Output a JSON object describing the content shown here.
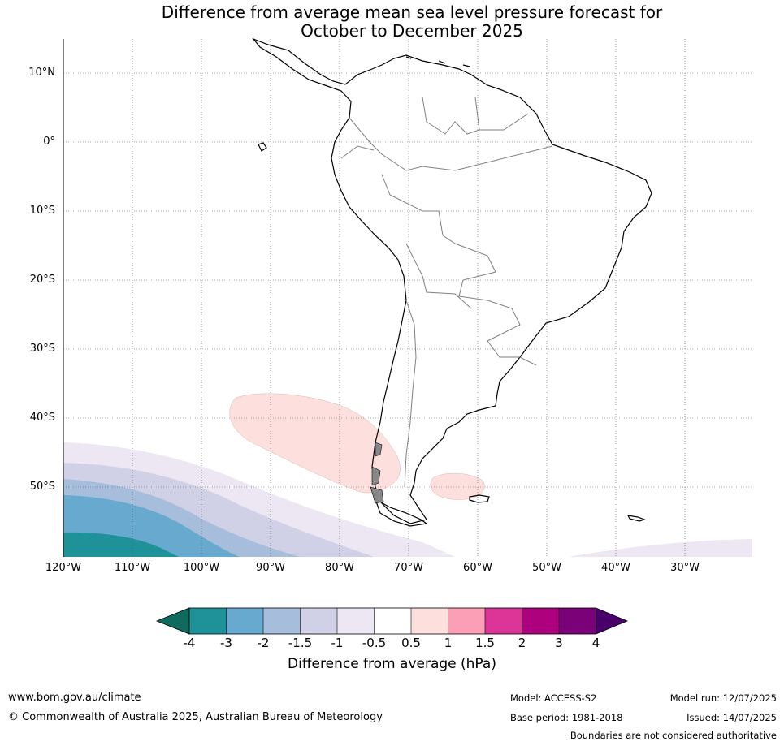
{
  "title_line1": "Difference from average mean sea level pressure forecast for",
  "title_line2": "October to December 2025",
  "lat_labels": [
    "10°N",
    "0°",
    "10°S",
    "20°S",
    "30°S",
    "40°S",
    "50°S"
  ],
  "lon_labels": [
    "120°W",
    "110°W",
    "100°W",
    "90°W",
    "80°W",
    "70°W",
    "60°W",
    "50°W",
    "40°W",
    "30°W"
  ],
  "colorbar": {
    "title": "Difference from average (hPa)",
    "tick_labels": [
      "-4",
      "-3",
      "-2",
      "-1.5",
      "-1",
      "-0.5",
      "0.5",
      "1",
      "1.5",
      "2",
      "3",
      "4"
    ],
    "colors": [
      "#0e6b5e",
      "#1f9299",
      "#67a9cf",
      "#a6bddb",
      "#d0d1e6",
      "#ece7f2",
      "#ffffff",
      "#fde0dd",
      "#fa9fb5",
      "#dd3497",
      "#ae017e",
      "#7a0177",
      "#49006a"
    ]
  },
  "footer": {
    "website": "www.bom.gov.au/climate",
    "copyright": "© Commonwealth of Australia 2025, Australian Bureau of Meteorology",
    "model": "Model: ACCESS-S2",
    "base_period": "Base period: 1981-2018",
    "model_run": "Model run: 12/07/2025",
    "issued": "Issued: 14/07/2025",
    "boundaries": "Boundaries are not considered authoritative"
  }
}
